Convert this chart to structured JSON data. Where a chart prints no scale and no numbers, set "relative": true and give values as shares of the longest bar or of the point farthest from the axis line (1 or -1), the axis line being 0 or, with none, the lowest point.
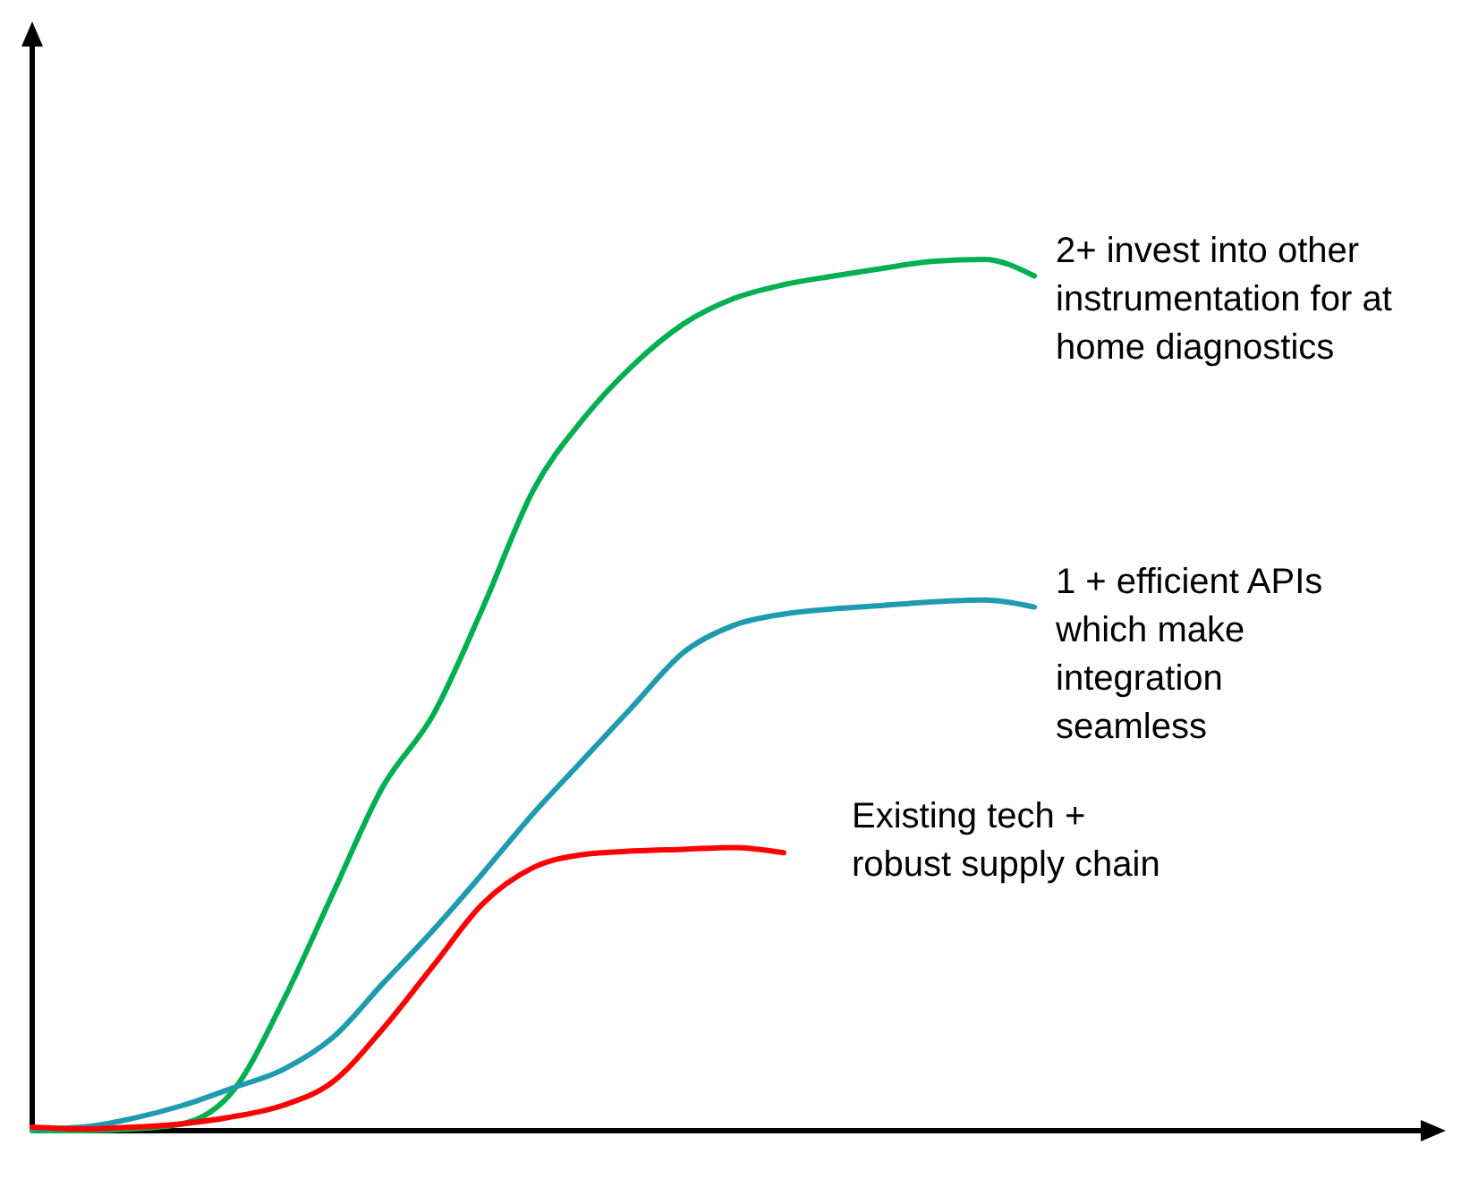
{
  "chart_data": {
    "type": "line",
    "relative": true,
    "marker": "none",
    "line_style": "solid",
    "categories": [
      null,
      null,
      null,
      null,
      null,
      null,
      null,
      null,
      null,
      null,
      null,
      null,
      null,
      null,
      null,
      null,
      null,
      null,
      null,
      null,
      null
    ],
    "series": [
      {
        "name": "2+ invest into other instrumentation for at home diagnostics",
        "color": "#00b050",
        "values": [
          0,
          0,
          0.002,
          0.008,
          0.045,
          0.148,
          0.272,
          0.395,
          0.477,
          0.601,
          0.735,
          0.817,
          0.879,
          0.926,
          0.955,
          0.971,
          0.981,
          0.99,
          0.998,
          1,
          0.981
        ]
      },
      {
        "name": "1 + efficient APIs which make integration seamless",
        "color": "#1f9bb0",
        "values": [
          0.002,
          0.004,
          0.014,
          0.029,
          0.049,
          0.07,
          0.107,
          0.169,
          0.23,
          0.296,
          0.364,
          0.426,
          0.488,
          0.549,
          0.58,
          0.593,
          0.599,
          0.603,
          0.607,
          0.609,
          0.601
        ]
      },
      {
        "name": "Existing tech + robust supply chain",
        "color": "#ff0000",
        "values": [
          0.004,
          0.002,
          0.004,
          0.008,
          0.016,
          0.029,
          0.056,
          0.117,
          0.189,
          0.261,
          0.302,
          0.317,
          0.321,
          0.323,
          0.325,
          0.319,
          null,
          null,
          null,
          null,
          null
        ]
      }
    ]
  }
}
